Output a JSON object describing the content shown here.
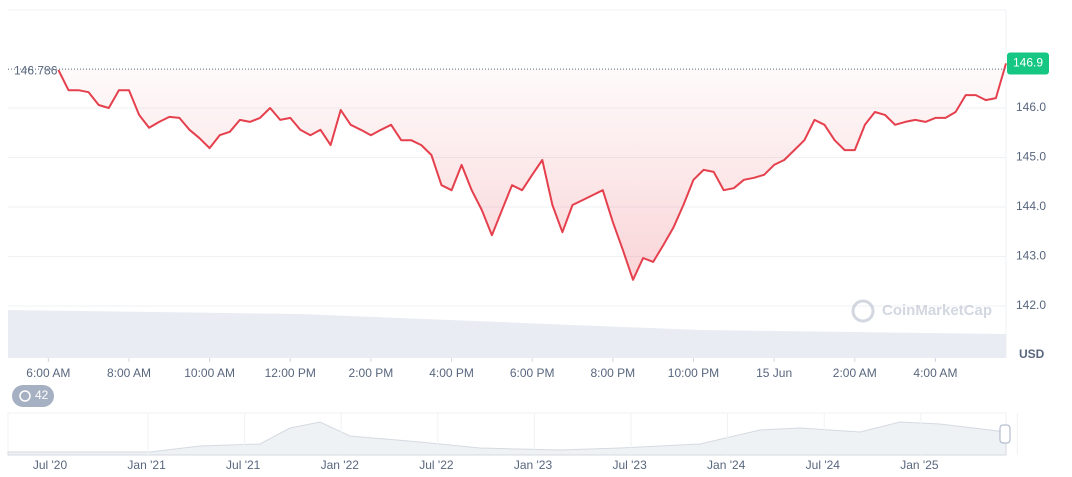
{
  "chart_data": {
    "type": "line",
    "color": "#e5404d",
    "x": [
      6.25,
      6.5,
      6.75,
      7,
      7.25,
      7.5,
      7.75,
      8,
      8.25,
      8.5,
      8.75,
      9,
      9.25,
      9.5,
      9.75,
      10,
      10.25,
      10.5,
      10.75,
      11,
      11.25,
      11.5,
      11.75,
      12,
      12.25,
      12.5,
      12.75,
      13,
      13.25,
      13.5,
      13.75,
      14,
      14.25,
      14.5,
      14.75,
      15,
      15.25,
      15.5,
      15.75,
      16,
      16.25,
      16.5,
      16.75,
      17,
      17.25,
      17.5,
      17.75,
      18,
      18.25,
      18.5,
      18.75,
      19,
      19.25,
      19.5,
      19.75,
      20,
      20.25,
      20.5,
      20.75,
      21,
      21.25,
      21.5,
      21.75,
      22,
      22.25,
      22.5,
      22.75,
      23,
      23.25,
      23.5,
      23.75,
      24,
      24.25,
      24.5,
      24.75,
      25,
      25.25,
      25.5,
      25.75,
      26,
      26.25,
      26.5,
      26.75,
      27,
      27.25,
      27.5,
      27.75,
      28,
      28.25,
      28.5,
      28.75,
      29,
      29.25,
      29.5,
      29.75
    ],
    "values": [
      146.77,
      146.36,
      146.36,
      146.32,
      146.06,
      146.0,
      146.36,
      146.36,
      145.86,
      145.6,
      145.72,
      145.82,
      145.8,
      145.56,
      145.39,
      145.19,
      145.45,
      145.52,
      145.76,
      145.72,
      145.8,
      146.0,
      145.76,
      145.8,
      145.56,
      145.45,
      145.56,
      145.25,
      145.96,
      145.66,
      145.56,
      145.45,
      145.56,
      145.66,
      145.35,
      145.35,
      145.25,
      145.05,
      144.44,
      144.34,
      144.85,
      144.34,
      143.94,
      143.43,
      143.94,
      144.44,
      144.34,
      144.65,
      144.95,
      144.04,
      143.49,
      144.04,
      144.14,
      144.24,
      144.34,
      143.7,
      143.13,
      142.53,
      142.97,
      142.89,
      143.23,
      143.58,
      144.04,
      144.55,
      144.75,
      144.71,
      144.34,
      144.38,
      144.55,
      144.59,
      144.65,
      144.85,
      144.95,
      145.15,
      145.35,
      145.76,
      145.66,
      145.35,
      145.15,
      145.15,
      145.66,
      145.92,
      145.86,
      145.66,
      145.72,
      145.76,
      145.72,
      145.8,
      145.8,
      145.92,
      146.26,
      146.26,
      146.16,
      146.2,
      146.9
    ],
    "xlim": [
      5,
      29.75
    ],
    "xticks": [
      {
        "value": 6,
        "label": "6:00 AM"
      },
      {
        "value": 8,
        "label": "8:00 AM"
      },
      {
        "value": 10,
        "label": "10:00 AM"
      },
      {
        "value": 12,
        "label": "12:00 PM"
      },
      {
        "value": 14,
        "label": "2:00 PM"
      },
      {
        "value": 16,
        "label": "4:00 PM"
      },
      {
        "value": 18,
        "label": "6:00 PM"
      },
      {
        "value": 20,
        "label": "8:00 PM"
      },
      {
        "value": 22,
        "label": "10:00 PM"
      },
      {
        "value": 24,
        "label": "15 Jun"
      },
      {
        "value": 26,
        "label": "2:00 AM"
      },
      {
        "value": 28,
        "label": "4:00 AM"
      }
    ],
    "ylim": [
      142,
      148
    ],
    "yticks": [
      {
        "value": 142,
        "label": "142.0"
      },
      {
        "value": 143,
        "label": "143.0"
      },
      {
        "value": 144,
        "label": "144.0"
      },
      {
        "value": 145,
        "label": "145.0"
      },
      {
        "value": 146,
        "label": "146.0"
      }
    ],
    "grid": true,
    "y_axis_label": "USD",
    "start_value": 146.786,
    "current_value": 146.9,
    "watermark": "CoinMarketCap",
    "badge": 42,
    "navigator_labels": [
      "Jul '20",
      "Jan '21",
      "Jul '21",
      "Jan '22",
      "Jul '22",
      "Jan '23",
      "Jul '23",
      "Jan '24",
      "Jul '24",
      "Jan '25"
    ]
  }
}
